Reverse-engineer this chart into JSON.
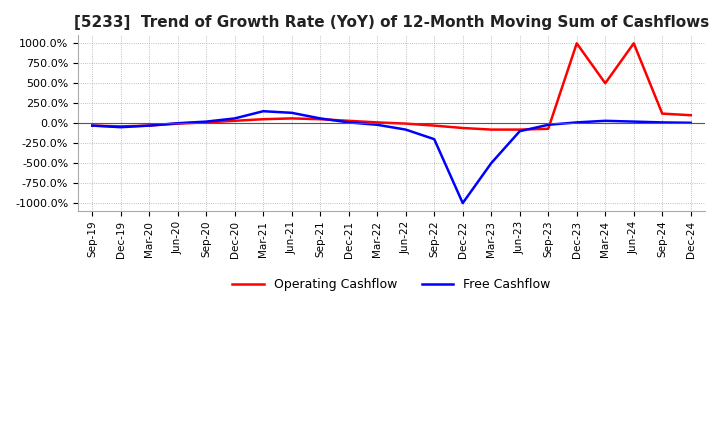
{
  "title": "[5233]  Trend of Growth Rate (YoY) of 12-Month Moving Sum of Cashflows",
  "title_fontsize": 11,
  "background_color": "#ffffff",
  "grid_color": "#aaaaaa",
  "xlabel": "",
  "ylabel": "",
  "ylim": [
    -1100,
    1100
  ],
  "yticks": [
    -1000,
    -750,
    -500,
    -250,
    0,
    250,
    500,
    750,
    1000
  ],
  "ytick_labels": [
    "-1000.0%",
    "-750.0%",
    "-500.0%",
    "-250.0%",
    "0.0%",
    "250.0%",
    "500.0%",
    "750.0%",
    "1000.0%"
  ],
  "x_labels": [
    "Sep-19",
    "Dec-19",
    "Mar-20",
    "Jun-20",
    "Sep-20",
    "Dec-20",
    "Mar-21",
    "Jun-21",
    "Sep-21",
    "Dec-21",
    "Mar-22",
    "Jun-22",
    "Sep-22",
    "Dec-22",
    "Mar-23",
    "Jun-23",
    "Sep-23",
    "Dec-23",
    "Mar-24",
    "Jun-24",
    "Sep-24",
    "Dec-24"
  ],
  "operating_cashflow": [
    -30,
    -40,
    -30,
    -5,
    10,
    30,
    50,
    60,
    50,
    30,
    10,
    -5,
    -30,
    -60,
    -80,
    -80,
    -70,
    1000,
    500,
    1000,
    120,
    100
  ],
  "free_cashflow": [
    -30,
    -50,
    -30,
    0,
    20,
    60,
    150,
    130,
    60,
    10,
    -20,
    -80,
    -200,
    -1000,
    -500,
    -100,
    -20,
    10,
    30,
    20,
    10,
    5
  ],
  "op_color": "#ff0000",
  "fc_color": "#0000ff",
  "legend_labels": [
    "Operating Cashflow",
    "Free Cashflow"
  ]
}
